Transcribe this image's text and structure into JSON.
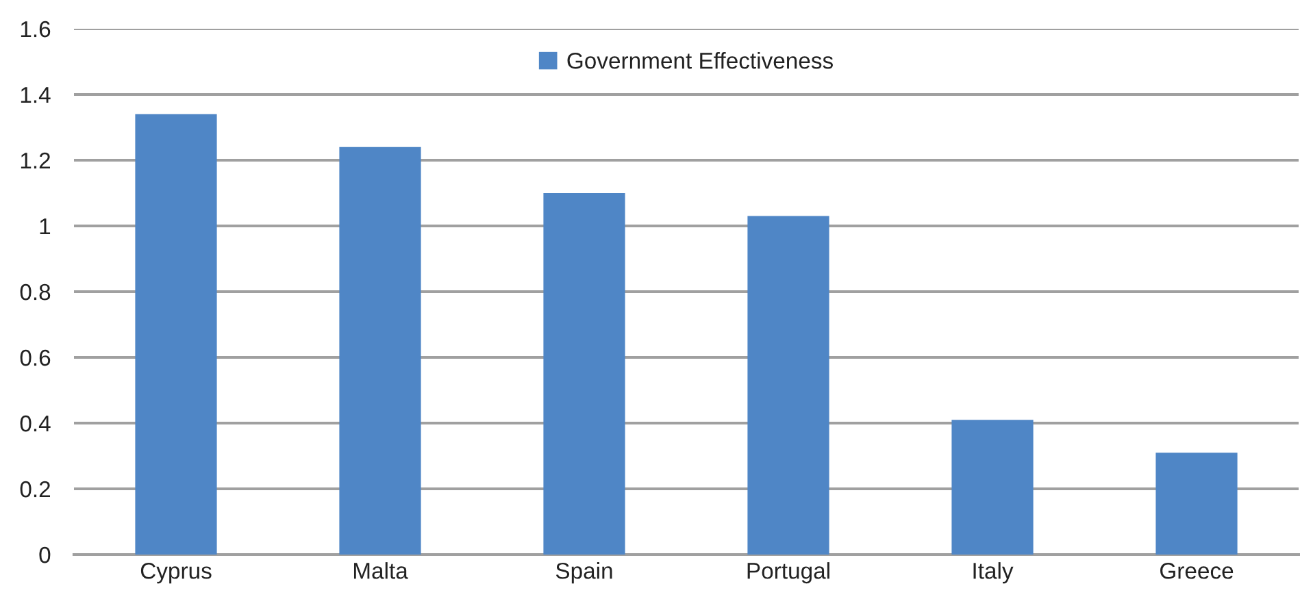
{
  "chart_data": {
    "type": "bar",
    "categories": [
      "Cyprus",
      "Malta",
      "Spain",
      "Portugal",
      "Italy",
      "Greece"
    ],
    "series": [
      {
        "name": "Government Effectiveness",
        "color": "#4f86c6",
        "values": [
          1.34,
          1.24,
          1.1,
          1.03,
          0.41,
          0.31
        ]
      }
    ],
    "ylim": [
      0,
      1.6
    ],
    "yticks": [
      0,
      0.2,
      0.4,
      0.6,
      0.8,
      1,
      1.2,
      1.4,
      1.6
    ],
    "grid": "y",
    "legend": "top"
  }
}
